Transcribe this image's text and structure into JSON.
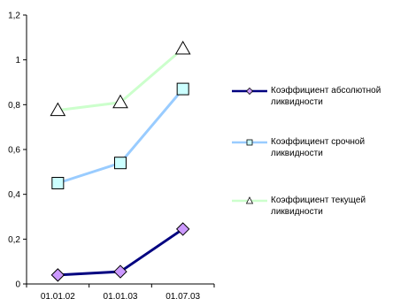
{
  "chart_data": {
    "type": "line",
    "categories": [
      "01.01.02",
      "01.01.03",
      "01.07.03"
    ],
    "ylim": [
      0,
      1.2
    ],
    "y_ticks": [
      "0",
      "0,2",
      "0,4",
      "0,6",
      "0,8",
      "1",
      "1,2"
    ],
    "grid": false,
    "legend_position": "right",
    "series": [
      {
        "name": "Коэффициент абсолютной ликвидности",
        "values": [
          0.04,
          0.055,
          0.245
        ],
        "line_color": "#000080",
        "marker": "diamond",
        "marker_fill": "#cc99ff"
      },
      {
        "name": "Коэффициент срочной ликвидности",
        "values": [
          0.45,
          0.54,
          0.87
        ],
        "line_color": "#99ccff",
        "marker": "square",
        "marker_fill": "#ccffff"
      },
      {
        "name": "Коэффициент текущей ликвидности",
        "values": [
          0.775,
          0.81,
          1.05
        ],
        "line_color": "#ccffcc",
        "marker": "triangle",
        "marker_fill": "#ffffff"
      }
    ]
  }
}
